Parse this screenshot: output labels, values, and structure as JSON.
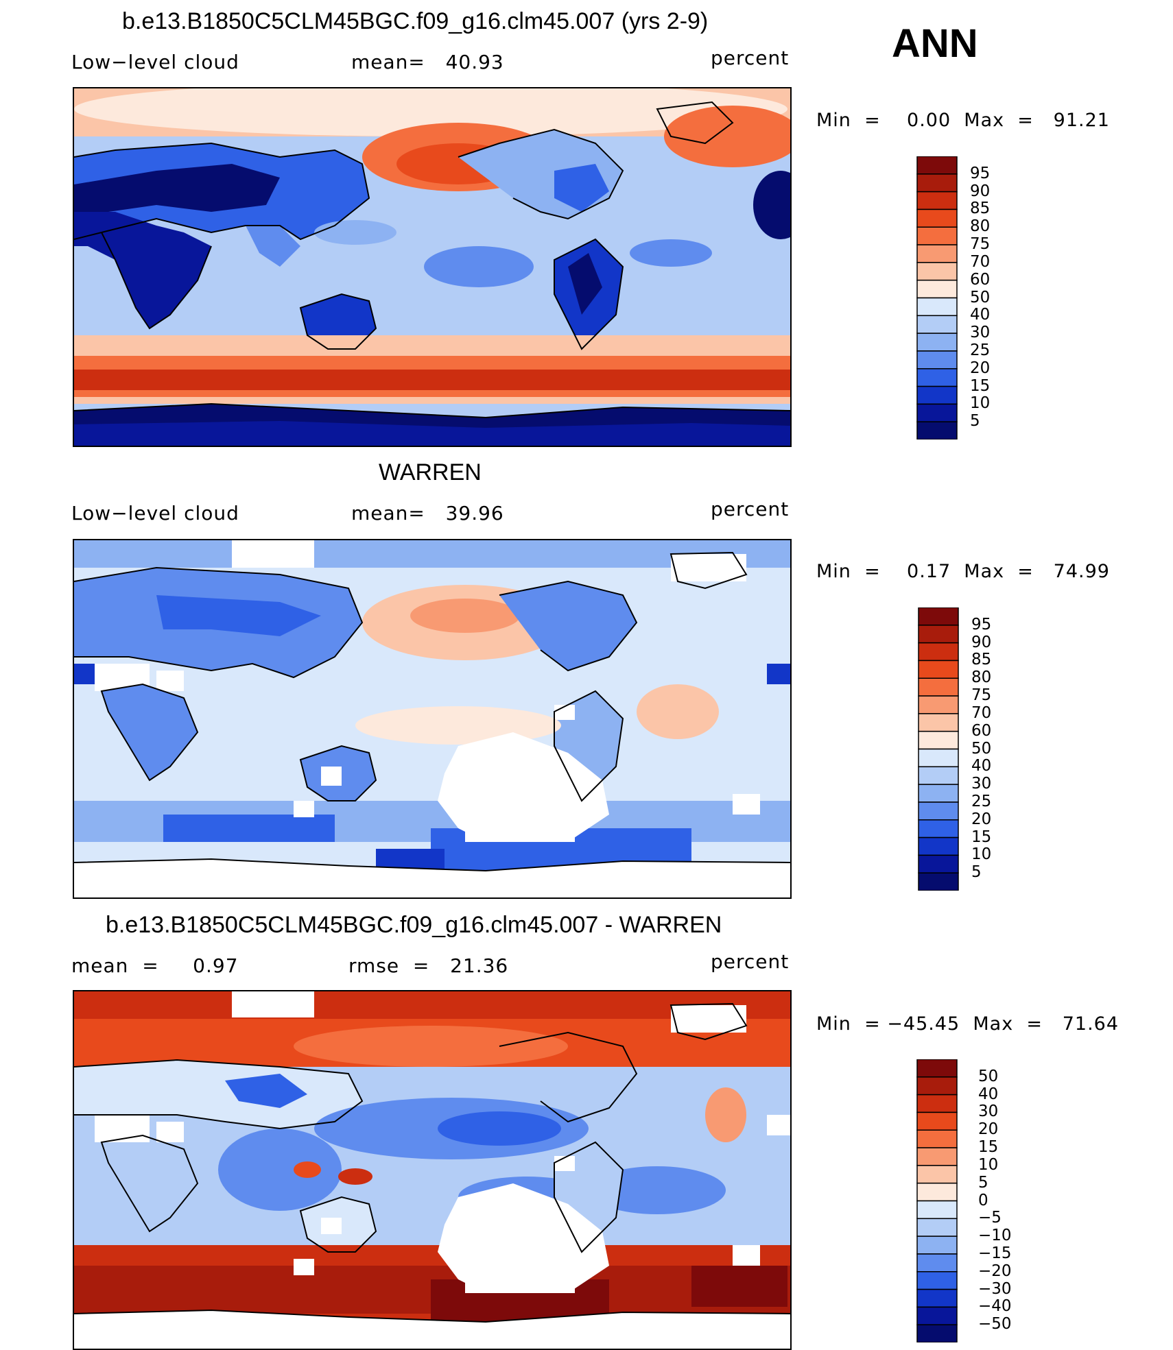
{
  "header": {
    "season": "ANN"
  },
  "panels": [
    {
      "title": "b.e13.B1850C5CLM45BGC.f09_g16.clm45.007 (yrs 2-9)",
      "left_label": "Low−level cloud",
      "mid_label": "mean=   40.93",
      "right_label": "percent",
      "minmax": "Min  =    0.00  Max  =   91.21",
      "colorbar_labels": [
        "95",
        "90",
        "85",
        "80",
        "75",
        "70",
        "60",
        "50",
        "40",
        "30",
        "25",
        "20",
        "15",
        "10",
        "5"
      ]
    },
    {
      "title": "WARREN",
      "left_label": "Low−level cloud",
      "mid_label": "mean=   39.96",
      "right_label": "percent",
      "minmax": "Min  =    0.17  Max  =   74.99",
      "colorbar_labels": [
        "95",
        "90",
        "85",
        "80",
        "75",
        "70",
        "60",
        "50",
        "40",
        "30",
        "25",
        "20",
        "15",
        "10",
        "5"
      ]
    },
    {
      "title": "b.e13.B1850C5CLM45BGC.f09_g16.clm45.007 - WARREN",
      "left_label": "mean  =     0.97",
      "mid_label": "rmse  =   21.36",
      "right_label": "percent",
      "minmax": "Min  = −45.45  Max  =   71.64",
      "colorbar_labels": [
        "50",
        "40",
        "30",
        "20",
        "15",
        "10",
        "5",
        "0",
        "−5",
        "−10",
        "−15",
        "−20",
        "−30",
        "−40",
        "−50"
      ]
    }
  ],
  "colors": {
    "levels": [
      "#7d0a0a",
      "#a81c0c",
      "#cc2e10",
      "#e84a1c",
      "#f46e3e",
      "#f89a72",
      "#fbc5a8",
      "#fde9dc",
      "#d9e8fb",
      "#b3cdf6",
      "#8db2f2",
      "#5f8cee",
      "#2f61e6",
      "#1236c8",
      "#08169a",
      "#050c6e"
    ],
    "land_outline": "#000000",
    "missing": "#ffffff"
  }
}
